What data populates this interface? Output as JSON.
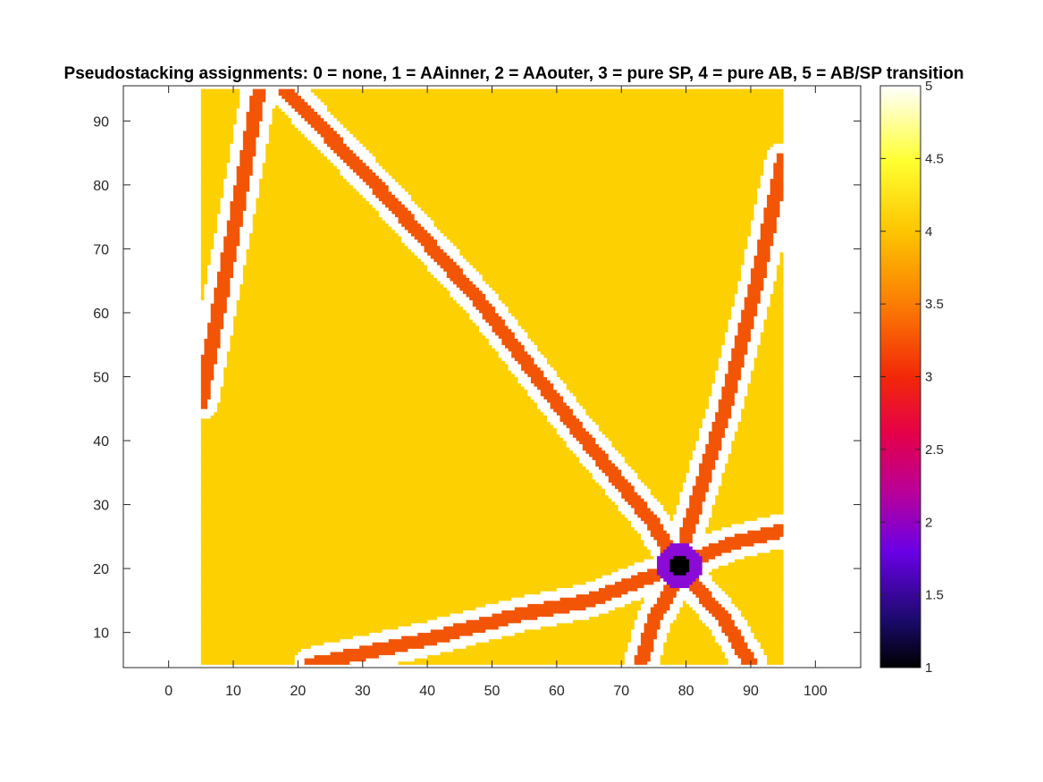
{
  "chart_data": {
    "type": "heatmap",
    "title": "Pseudostacking assignments: 0 = none, 1 = AAinner, 2 = AAouter, 3 = pure SP, 4 = pure AB, 5 = AB/SP transition",
    "xlabel": "",
    "ylabel": "",
    "xlim": [
      -7,
      107
    ],
    "ylim": [
      4.5,
      95.5
    ],
    "xticks": [
      0,
      10,
      20,
      30,
      40,
      50,
      60,
      70,
      80,
      90,
      100
    ],
    "yticks": [
      10,
      20,
      30,
      40,
      50,
      60,
      70,
      80,
      90
    ],
    "grid": false,
    "colorbar": {
      "range": [
        1,
        5
      ],
      "ticks": [
        "1",
        "1.5",
        "2",
        "2.5",
        "3",
        "3.5",
        "4",
        "4.5",
        "5"
      ],
      "colormap": "hot-like (black-purple-magenta-red-orange-yellow-white)"
    },
    "data_extent": {
      "x": [
        5,
        95
      ],
      "y": [
        5,
        95
      ]
    },
    "background_value": 4,
    "aa_center": {
      "x": 79,
      "y": 20.5
    },
    "aa_inner_radius": 1.5,
    "aa_outer_radius": 3.5,
    "walls": [
      {
        "points": [
          [
            14,
            95
          ],
          [
            11,
            78
          ],
          [
            8,
            62
          ],
          [
            5,
            46
          ]
        ]
      },
      {
        "points": [
          [
            18,
            95
          ],
          [
            33,
            79
          ],
          [
            48,
            62
          ],
          [
            63,
            42
          ],
          [
            75,
            27
          ],
          [
            79,
            20
          ]
        ]
      },
      {
        "points": [
          [
            95,
            84
          ],
          [
            91,
            65
          ],
          [
            86,
            45
          ],
          [
            80,
            25
          ]
        ]
      },
      {
        "points": [
          [
            22,
            5
          ],
          [
            40,
            9
          ],
          [
            55,
            13
          ],
          [
            65,
            15
          ],
          [
            75,
            19
          ]
        ]
      },
      {
        "points": [
          [
            80,
            21
          ],
          [
            87,
            24
          ],
          [
            95,
            26
          ]
        ]
      },
      {
        "points": [
          [
            80,
            19
          ],
          [
            86,
            12
          ],
          [
            90,
            5
          ]
        ]
      },
      {
        "points": [
          [
            79,
            19
          ],
          [
            75,
            12
          ],
          [
            73,
            5
          ]
        ]
      }
    ],
    "colors": {
      "value_1": "#000000",
      "value_2": "#8a0bd6",
      "value_3": "#f25505",
      "value_4": "#fdd002",
      "value_5": "#ffffff"
    }
  }
}
